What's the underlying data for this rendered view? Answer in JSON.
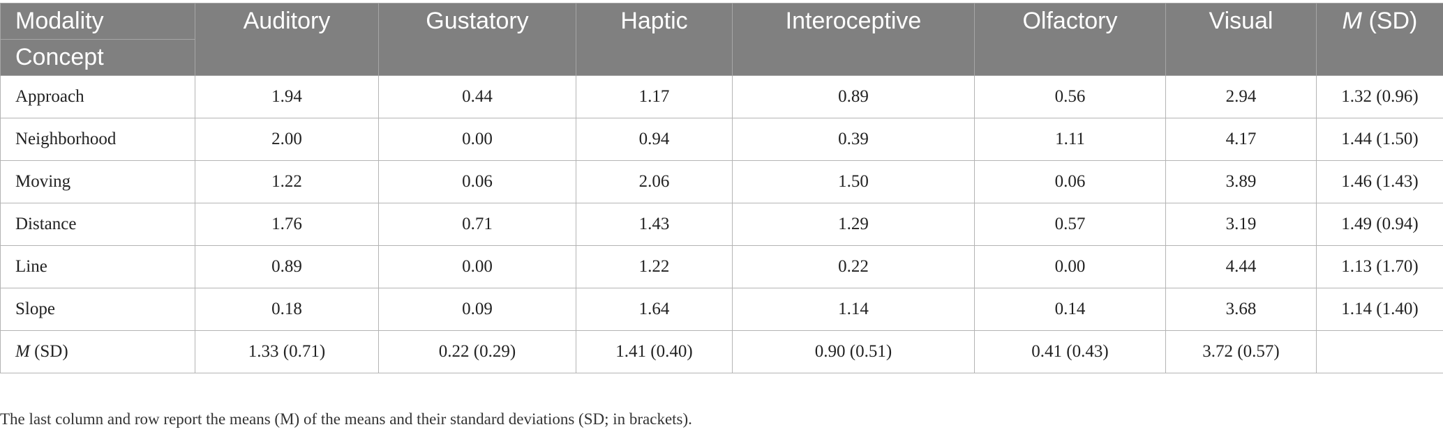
{
  "table": {
    "header": {
      "corner_top": "Modality",
      "corner_bottom": "Concept",
      "columns": [
        "Auditory",
        "Gustatory",
        "Haptic",
        "Interoceptive",
        "Olfactory",
        "Visual"
      ],
      "last_col_m": "M",
      "last_col_sd": " (SD)"
    },
    "rows": [
      {
        "concept": "Approach",
        "values": [
          "1.94",
          "0.44",
          "1.17",
          "0.89",
          "0.56",
          "2.94"
        ],
        "msd": "1.32 (0.96)"
      },
      {
        "concept": "Neighborhood",
        "values": [
          "2.00",
          "0.00",
          "0.94",
          "0.39",
          "1.11",
          "4.17"
        ],
        "msd": "1.44 (1.50)"
      },
      {
        "concept": "Moving",
        "values": [
          "1.22",
          "0.06",
          "2.06",
          "1.50",
          "0.06",
          "3.89"
        ],
        "msd": "1.46 (1.43)"
      },
      {
        "concept": "Distance",
        "values": [
          "1.76",
          "0.71",
          "1.43",
          "1.29",
          "0.57",
          "3.19"
        ],
        "msd": "1.49 (0.94)"
      },
      {
        "concept": "Line",
        "values": [
          "0.89",
          "0.00",
          "1.22",
          "0.22",
          "0.00",
          "4.44"
        ],
        "msd": "1.13 (1.70)"
      },
      {
        "concept": "Slope",
        "values": [
          "0.18",
          "0.09",
          "1.64",
          "1.14",
          "0.14",
          "3.68"
        ],
        "msd": "1.14 (1.40)"
      }
    ],
    "summary": {
      "label_m": "M",
      "label_sd": " (SD)",
      "values": [
        "1.33 (0.71)",
        "0.22 (0.29)",
        "1.41 (0.40)",
        "0.90 (0.51)",
        "0.41 (0.43)",
        "3.72 (0.57)"
      ],
      "last": ""
    }
  },
  "caption": "The last column and row report the means (M) of the means and their standard deviations (SD; in brackets)."
}
